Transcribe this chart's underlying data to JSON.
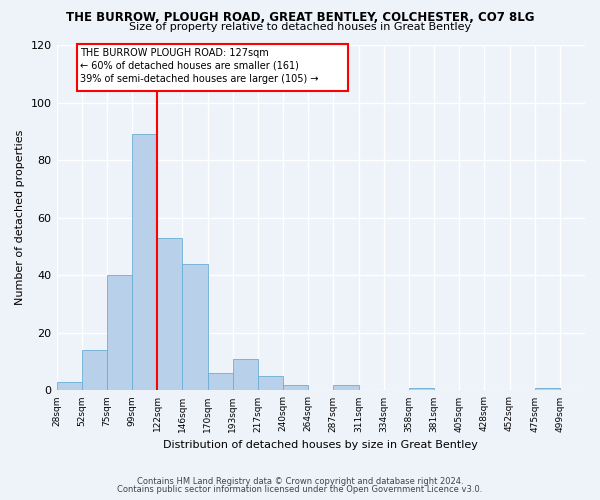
{
  "title1": "THE BURROW, PLOUGH ROAD, GREAT BENTLEY, COLCHESTER, CO7 8LG",
  "title2": "Size of property relative to detached houses in Great Bentley",
  "xlabel": "Distribution of detached houses by size in Great Bentley",
  "ylabel": "Number of detached properties",
  "bin_labels": [
    "28sqm",
    "52sqm",
    "75sqm",
    "99sqm",
    "122sqm",
    "146sqm",
    "170sqm",
    "193sqm",
    "217sqm",
    "240sqm",
    "264sqm",
    "287sqm",
    "311sqm",
    "334sqm",
    "358sqm",
    "381sqm",
    "405sqm",
    "428sqm",
    "452sqm",
    "475sqm",
    "499sqm"
  ],
  "bar_heights": [
    3,
    14,
    40,
    89,
    53,
    44,
    6,
    11,
    5,
    2,
    0,
    2,
    0,
    0,
    1,
    0,
    0,
    0,
    0,
    1,
    0
  ],
  "bar_color": "#b8d0ea",
  "bar_edge_color": "#6aaed6",
  "red_line_bin": 4,
  "annotation_line1": "THE BURROW PLOUGH ROAD: 127sqm",
  "annotation_line2": "← 60% of detached houses are smaller (161)",
  "annotation_line3": "39% of semi-detached houses are larger (105) →",
  "ylim": [
    0,
    120
  ],
  "yticks": [
    0,
    20,
    40,
    60,
    80,
    100,
    120
  ],
  "background_color": "#eef2f9",
  "grid_color": "#ffffff",
  "footer1": "Contains HM Land Registry data © Crown copyright and database right 2024.",
  "footer2": "Contains public sector information licensed under the Open Government Licence v3.0."
}
